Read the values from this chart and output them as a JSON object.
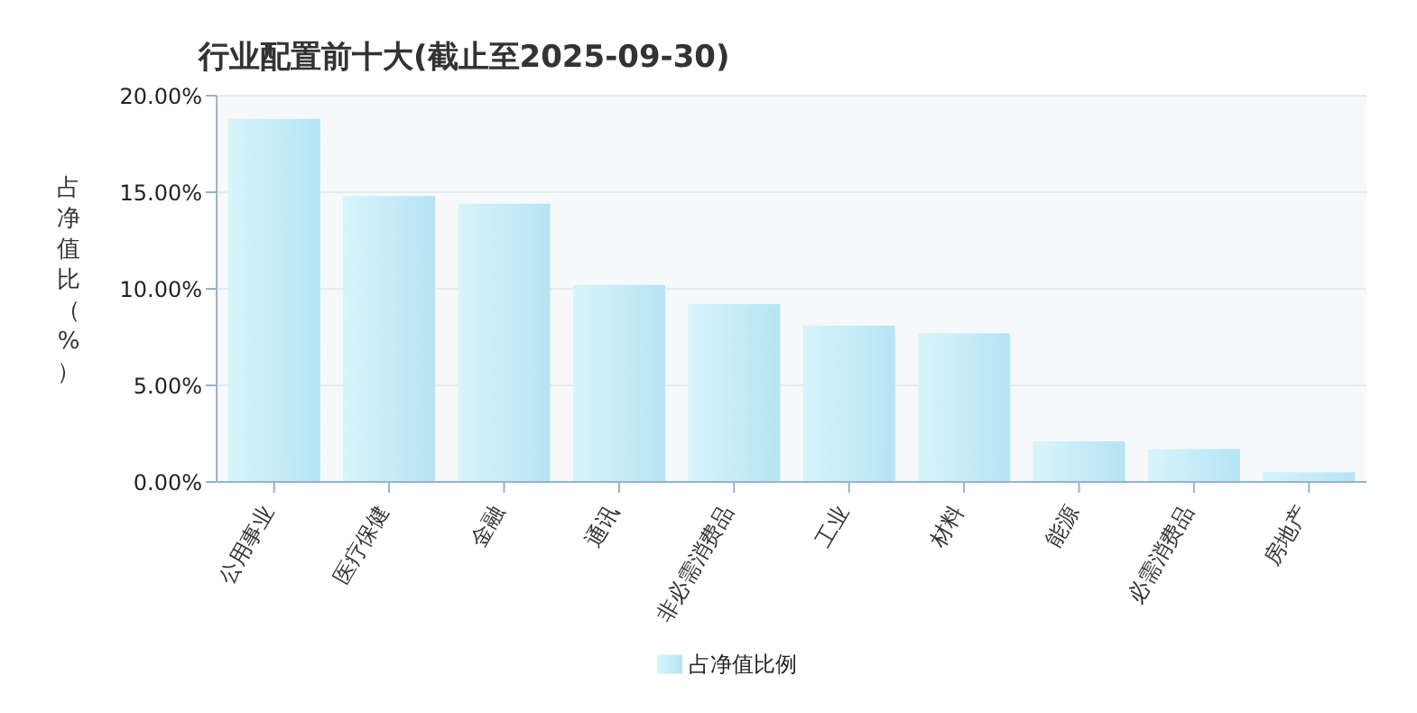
{
  "chart_data": {
    "type": "bar",
    "title": "行业配置前十大(截止至2025-09-30)",
    "ylabel": "占净值比（%）",
    "categories": [
      "公用事业",
      "医疗保健",
      "金融",
      "通讯",
      "非必需消费品",
      "工业",
      "材料",
      "能源",
      "必需消费品",
      "房地产"
    ],
    "series": [
      {
        "name": "占净值比例",
        "color": "#b5e4f4",
        "values": [
          18.8,
          14.8,
          14.4,
          10.2,
          9.2,
          8.1,
          7.7,
          2.1,
          1.7,
          0.5
        ]
      }
    ],
    "ylim": [
      0,
      20
    ],
    "yticks": [
      {
        "value": 0,
        "label": "0.00%"
      },
      {
        "value": 5,
        "label": "5.00%"
      },
      {
        "value": 10,
        "label": "10.00%"
      },
      {
        "value": 15,
        "label": "15.00%"
      },
      {
        "value": 20,
        "label": "20.00%"
      }
    ],
    "grid": "y",
    "legend": "bottom"
  }
}
